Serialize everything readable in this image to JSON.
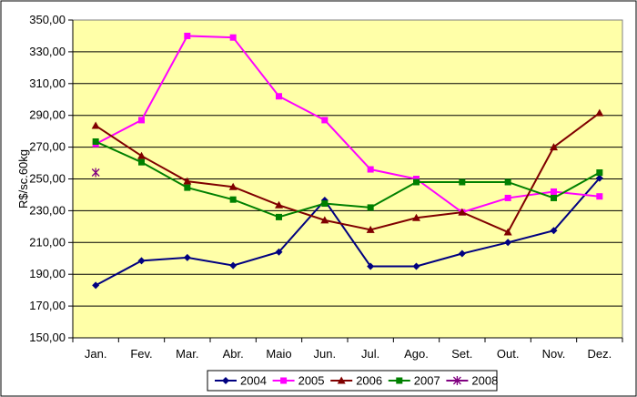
{
  "chart_data": {
    "type": "line",
    "title": "",
    "xlabel": "",
    "ylabel": "R$/sc.60kg",
    "ylim": [
      150,
      350
    ],
    "y_ticks": [
      "150,00",
      "170,00",
      "190,00",
      "210,00",
      "230,00",
      "250,00",
      "270,00",
      "290,00",
      "310,00",
      "330,00",
      "350,00"
    ],
    "categories": [
      "Jan.",
      "Fev.",
      "Mar.",
      "Abr.",
      "Maio",
      "Jun.",
      "Jul.",
      "Ago.",
      "Set.",
      "Out.",
      "Nov.",
      "Dez."
    ],
    "grid": true,
    "legend_position": "bottom",
    "plot_background": "#FFFFA8",
    "series": [
      {
        "name": "2004",
        "color": "#000080",
        "marker": "diamond",
        "values": [
          183,
          198.5,
          200.5,
          195.5,
          204,
          236.5,
          195,
          195,
          203,
          210,
          217.5,
          250.5
        ]
      },
      {
        "name": "2005",
        "color": "#FF00FF",
        "marker": "square",
        "values": [
          272,
          287,
          340,
          339,
          302,
          287,
          256,
          250,
          229,
          238,
          242,
          239
        ]
      },
      {
        "name": "2006",
        "color": "#800000",
        "marker": "triangle",
        "values": [
          283.5,
          264.5,
          248.5,
          245,
          233.5,
          224,
          218,
          225.5,
          229,
          216.5,
          270,
          291.5
        ]
      },
      {
        "name": "2007",
        "color": "#008000",
        "marker": "square",
        "values": [
          273.5,
          260.5,
          244.5,
          237,
          226,
          234.5,
          232,
          248,
          248,
          248,
          238,
          254
        ]
      },
      {
        "name": "2008",
        "color": "#800080",
        "marker": "star",
        "values": [
          254,
          null,
          null,
          null,
          null,
          null,
          null,
          null,
          null,
          null,
          null,
          null
        ]
      }
    ]
  }
}
